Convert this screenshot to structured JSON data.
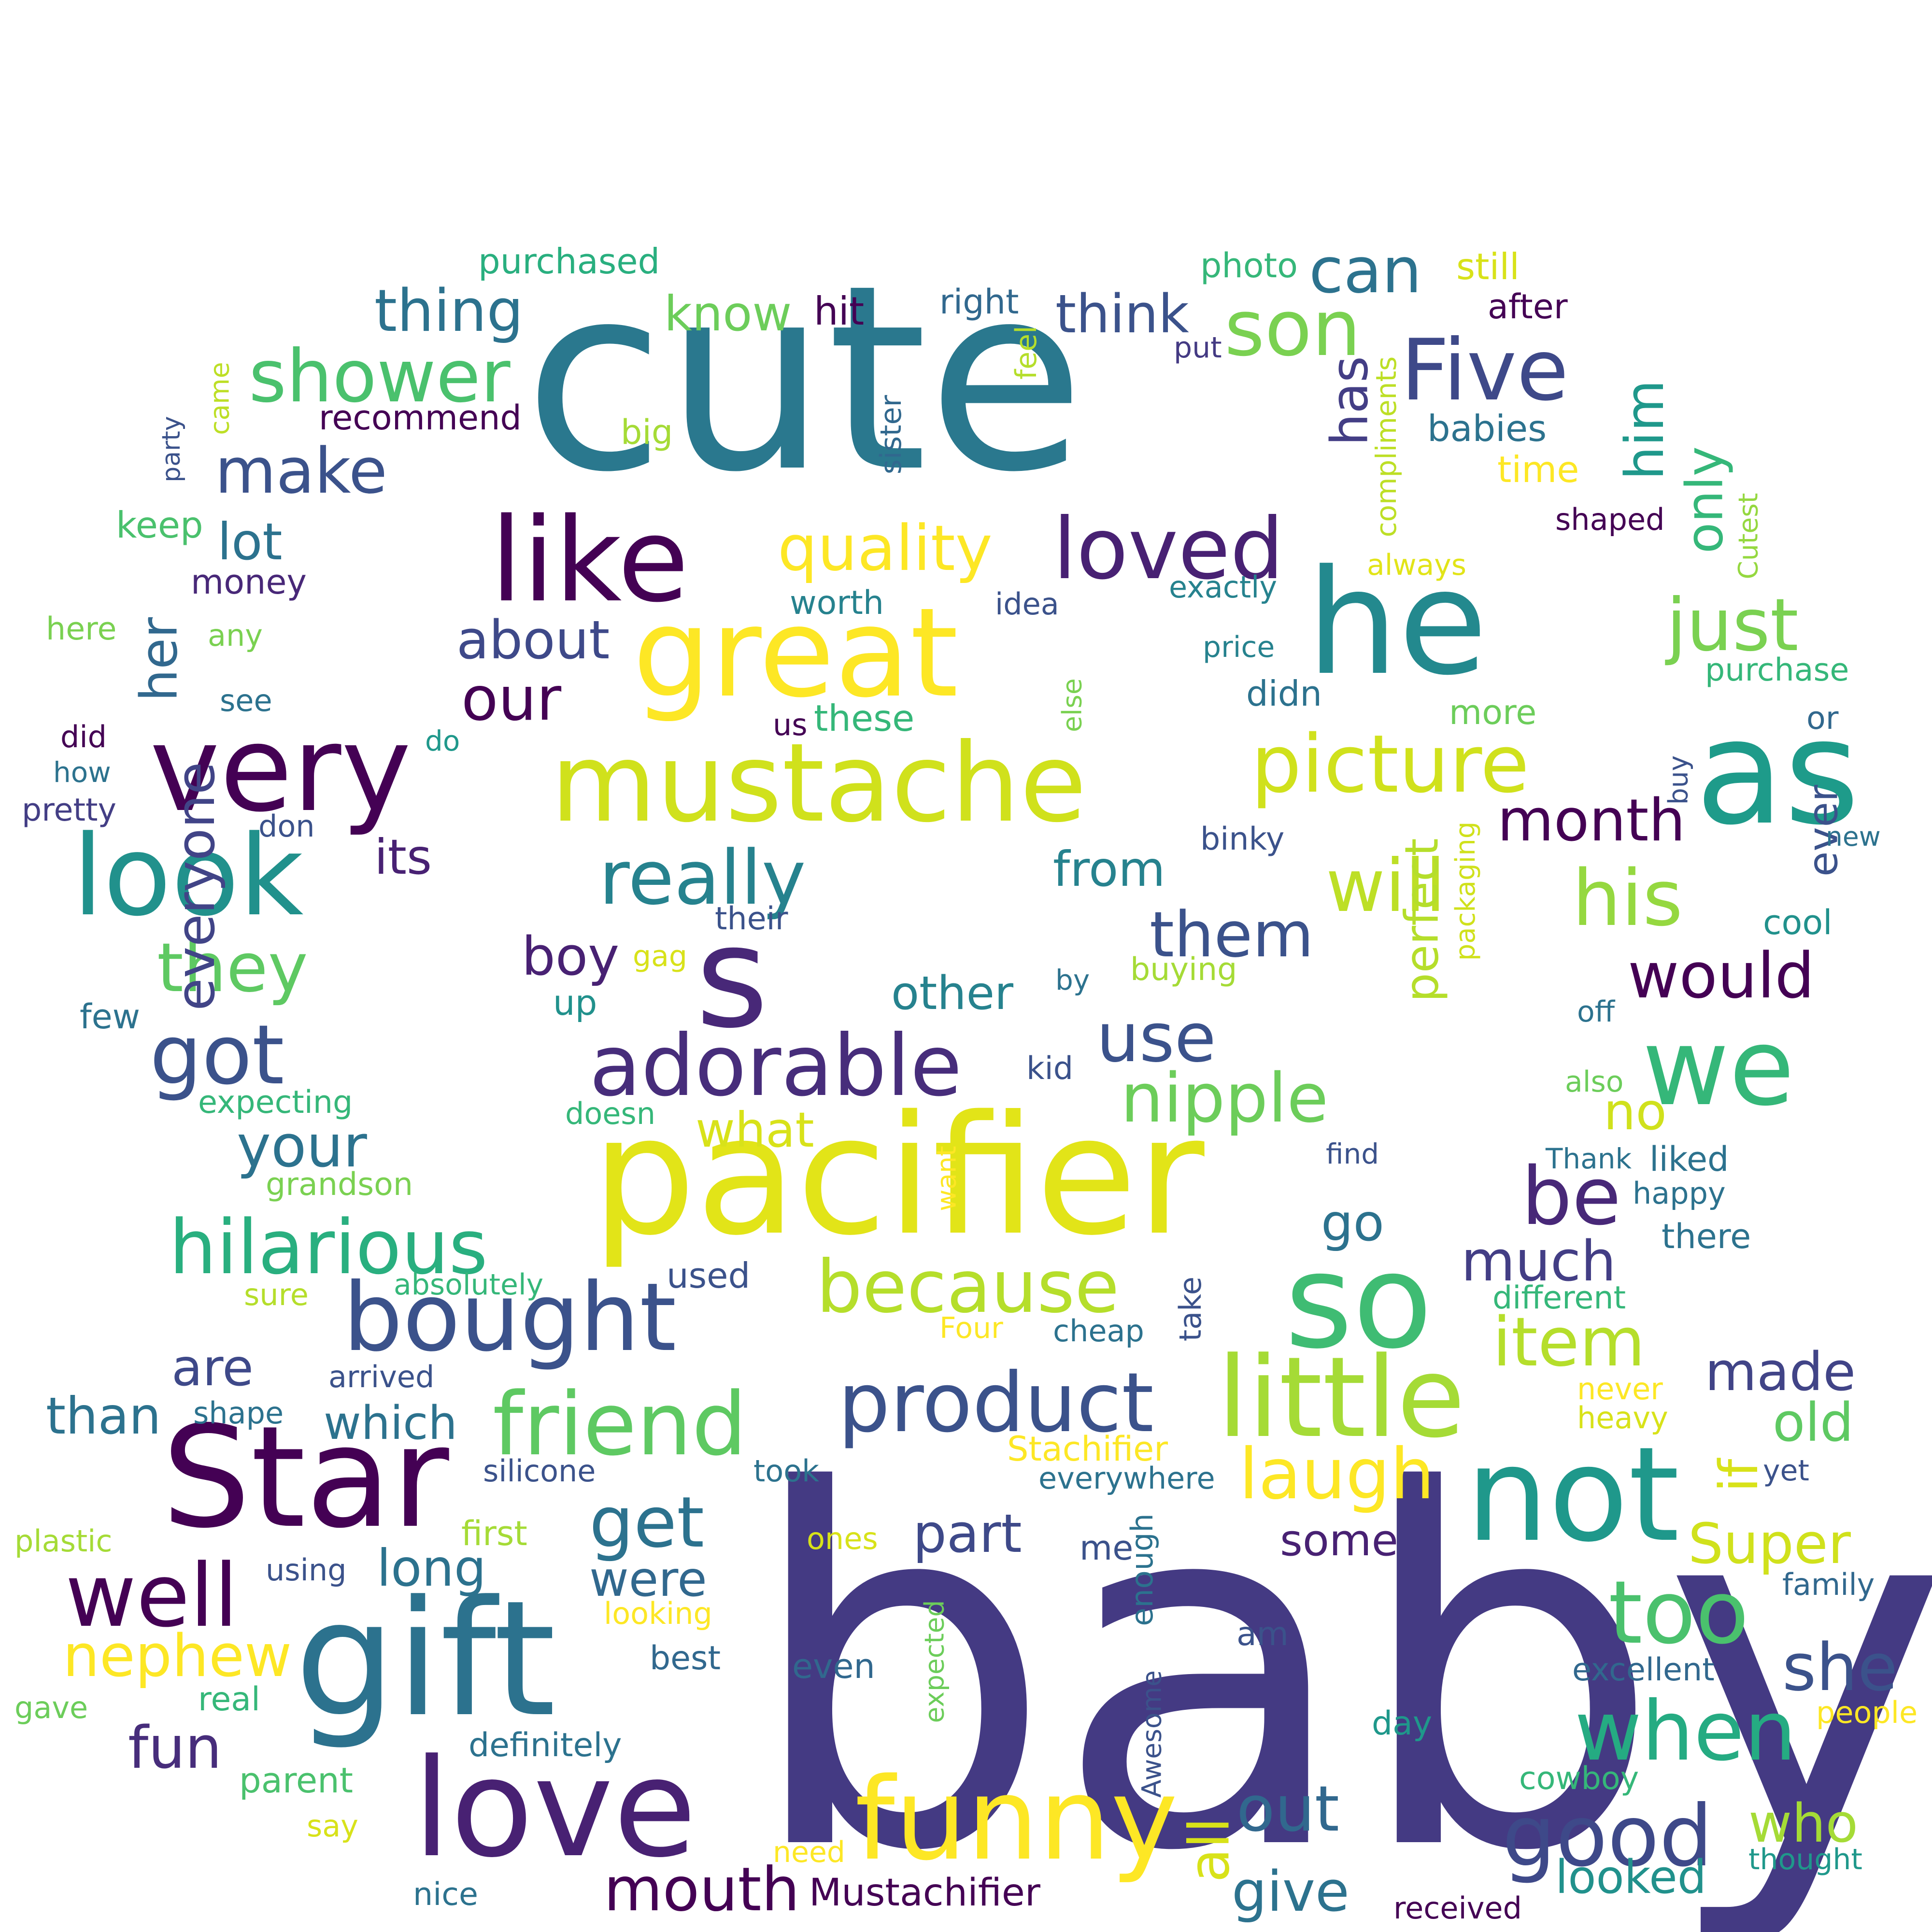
{
  "words": [
    {
      "text": "baby",
      "color": "#443a83"
    },
    {
      "text": "cute",
      "color": "#2a788e"
    },
    {
      "text": "pacifier",
      "color": "#e2e418"
    },
    {
      "text": "gift",
      "color": "#2c728e"
    },
    {
      "text": "Star",
      "color": "#440154"
    },
    {
      "text": "love",
      "color": "#482173"
    },
    {
      "text": "great",
      "color": "#fde725"
    },
    {
      "text": "mustache",
      "color": "#d0e11c"
    },
    {
      "text": "like",
      "color": "#440154"
    },
    {
      "text": "not",
      "color": "#1f988b"
    },
    {
      "text": "he",
      "color": "#23898e"
    },
    {
      "text": "so",
      "color": "#3fbc73"
    },
    {
      "text": "very",
      "color": "#440154"
    },
    {
      "text": "look",
      "color": "#21918c"
    },
    {
      "text": "little",
      "color": "#a5db36"
    },
    {
      "text": "funny",
      "color": "#fde725"
    },
    {
      "text": "s",
      "color": "#482878"
    },
    {
      "text": "bought",
      "color": "#3b528b"
    },
    {
      "text": "as",
      "color": "#1e9b8a"
    },
    {
      "text": "adorable",
      "color": "#472d7b"
    },
    {
      "text": "friend",
      "color": "#5ec962"
    },
    {
      "text": "product",
      "color": "#3b528b"
    },
    {
      "text": "we",
      "color": "#35b779"
    },
    {
      "text": "well",
      "color": "#440154"
    },
    {
      "text": "loved",
      "color": "#482173"
    },
    {
      "text": "Five",
      "color": "#3e4989"
    },
    {
      "text": "son",
      "color": "#7ad151"
    },
    {
      "text": "picture",
      "color": "#d0e11c"
    },
    {
      "text": "hilarious",
      "color": "#29af7f"
    },
    {
      "text": "got",
      "color": "#3b528b"
    },
    {
      "text": "good",
      "color": "#3e4989"
    },
    {
      "text": "too",
      "color": "#4ac16d"
    },
    {
      "text": "when",
      "color": "#25ab82"
    },
    {
      "text": "because",
      "color": "#b5de2b"
    },
    {
      "text": "laugh",
      "color": "#fde725"
    },
    {
      "text": "really",
      "color": "#26828e"
    },
    {
      "text": "shower",
      "color": "#4ac16d"
    },
    {
      "text": "his",
      "color": "#95d840"
    },
    {
      "text": "just",
      "color": "#7ad151"
    },
    {
      "text": "quality",
      "color": "#fde725"
    },
    {
      "text": "nipple",
      "color": "#6ccd5a"
    },
    {
      "text": "mouth",
      "color": "#440154"
    },
    {
      "text": "item",
      "color": "#b5de2b"
    },
    {
      "text": "out",
      "color": "#31688e"
    },
    {
      "text": "give",
      "color": "#2c728e"
    },
    {
      "text": "nephew",
      "color": "#fde725"
    },
    {
      "text": "will",
      "color": "#bddf26"
    },
    {
      "text": "get",
      "color": "#2c728e"
    },
    {
      "text": "be",
      "color": "#482878"
    },
    {
      "text": "make",
      "color": "#3b528b"
    },
    {
      "text": "they",
      "color": "#5ec962"
    },
    {
      "text": "use",
      "color": "#3b528b"
    },
    {
      "text": "them",
      "color": "#3b528b"
    },
    {
      "text": "thing",
      "color": "#2c728e"
    },
    {
      "text": "month",
      "color": "#440154"
    },
    {
      "text": "would",
      "color": "#440154"
    },
    {
      "text": "can",
      "color": "#2c728e"
    },
    {
      "text": "fun",
      "color": "#472d7b"
    },
    {
      "text": "she",
      "color": "#3b528b"
    },
    {
      "text": "your",
      "color": "#2c728e"
    },
    {
      "text": "Super",
      "color": "#d0e11c"
    },
    {
      "text": "looked",
      "color": "#21918c"
    },
    {
      "text": "our",
      "color": "#440154"
    },
    {
      "text": "made",
      "color": "#414487"
    },
    {
      "text": "who",
      "color": "#a5db36"
    },
    {
      "text": "much",
      "color": "#433e85"
    },
    {
      "text": "think",
      "color": "#3b528b"
    },
    {
      "text": "boy",
      "color": "#482173"
    },
    {
      "text": "about",
      "color": "#3e4989"
    },
    {
      "text": "long",
      "color": "#2c728e"
    },
    {
      "text": "part",
      "color": "#3e4989"
    },
    {
      "text": "were",
      "color": "#31688e"
    },
    {
      "text": "everyone",
      "color": "#414487"
    },
    {
      "text": "her",
      "color": "#31688e"
    },
    {
      "text": "perfect",
      "color": "#b5de2b"
    },
    {
      "text": "old",
      "color": "#5ec962"
    },
    {
      "text": "know",
      "color": "#6ccd5a"
    },
    {
      "text": "other",
      "color": "#26828e"
    },
    {
      "text": "which",
      "color": "#2c728e"
    },
    {
      "text": "what",
      "color": "#d8e219"
    },
    {
      "text": "some",
      "color": "#482173"
    },
    {
      "text": "has",
      "color": "#433e85"
    },
    {
      "text": "him",
      "color": "#1f988b"
    },
    {
      "text": "only",
      "color": "#35b779"
    },
    {
      "text": "from",
      "color": "#26828e"
    },
    {
      "text": "are",
      "color": "#3e4989"
    },
    {
      "text": "than",
      "color": "#2c728e"
    },
    {
      "text": "lot",
      "color": "#2c728e"
    },
    {
      "text": "its",
      "color": "#482173"
    },
    {
      "text": "go",
      "color": "#2c728e"
    },
    {
      "text": "no",
      "color": "#d0e11c"
    },
    {
      "text": "all",
      "color": "#d8e219"
    },
    {
      "text": "if",
      "color": "#d8e219"
    },
    {
      "text": "ever",
      "color": "#3b528b"
    },
    {
      "text": "Mustachifier",
      "color": "#440154"
    },
    {
      "text": "purchased",
      "color": "#29af7f"
    },
    {
      "text": "photo",
      "color": "#35b779"
    },
    {
      "text": "still",
      "color": "#d8e219"
    },
    {
      "text": "after",
      "color": "#440154"
    },
    {
      "text": "hit",
      "color": "#440154"
    },
    {
      "text": "right",
      "color": "#31688e"
    },
    {
      "text": "put",
      "color": "#443a83"
    },
    {
      "text": "feel",
      "color": "#b5de2b"
    },
    {
      "text": "recommend",
      "color": "#440154"
    },
    {
      "text": "big",
      "color": "#a5db36"
    },
    {
      "text": "sister",
      "color": "#31688e"
    },
    {
      "text": "compliments",
      "color": "#bddf26"
    },
    {
      "text": "babies",
      "color": "#2c728e"
    },
    {
      "text": "time",
      "color": "#fde725"
    },
    {
      "text": "shaped",
      "color": "#440154"
    },
    {
      "text": "came",
      "color": "#bddf26"
    },
    {
      "text": "party",
      "color": "#3b528b"
    },
    {
      "text": "keep",
      "color": "#4ac16d"
    },
    {
      "text": "money",
      "color": "#482878"
    },
    {
      "text": "worth",
      "color": "#26828e"
    },
    {
      "text": "idea",
      "color": "#3b528b"
    },
    {
      "text": "exactly",
      "color": "#26828e"
    },
    {
      "text": "always",
      "color": "#e2e418"
    },
    {
      "text": "Cutest",
      "color": "#95d840"
    },
    {
      "text": "here",
      "color": "#7ad151"
    },
    {
      "text": "any",
      "color": "#7ad151"
    },
    {
      "text": "price",
      "color": "#26828e"
    },
    {
      "text": "purchase",
      "color": "#35b779"
    },
    {
      "text": "see",
      "color": "#2c728e"
    },
    {
      "text": "else",
      "color": "#7ad151"
    },
    {
      "text": "didn",
      "color": "#2c728e"
    },
    {
      "text": "more",
      "color": "#6ccd5a"
    },
    {
      "text": "did",
      "color": "#440154"
    },
    {
      "text": "us",
      "color": "#440154"
    },
    {
      "text": "these",
      "color": "#35b779"
    },
    {
      "text": "or",
      "color": "#31688e"
    },
    {
      "text": "do",
      "color": "#1f988b"
    },
    {
      "text": "how",
      "color": "#2c728e"
    },
    {
      "text": "buy",
      "color": "#3b528b"
    },
    {
      "text": "pretty",
      "color": "#433e85"
    },
    {
      "text": "don",
      "color": "#3b528b"
    },
    {
      "text": "binky",
      "color": "#3b528b"
    },
    {
      "text": "packaging",
      "color": "#d0e11c"
    },
    {
      "text": "new",
      "color": "#2c728e"
    },
    {
      "text": "their",
      "color": "#3b528b"
    },
    {
      "text": "gag",
      "color": "#d8e219"
    },
    {
      "text": "cool",
      "color": "#21918c"
    },
    {
      "text": "buying",
      "color": "#a5db36"
    },
    {
      "text": "by",
      "color": "#2c728e"
    },
    {
      "text": "few",
      "color": "#2c728e"
    },
    {
      "text": "up",
      "color": "#21918c"
    },
    {
      "text": "off",
      "color": "#2c728e"
    },
    {
      "text": "kid",
      "color": "#3b528b"
    },
    {
      "text": "expecting",
      "color": "#35b779"
    },
    {
      "text": "also",
      "color": "#6ccd5a"
    },
    {
      "text": "doesn",
      "color": "#35b779"
    },
    {
      "text": "find",
      "color": "#3b528b"
    },
    {
      "text": "want",
      "color": "#fde725"
    },
    {
      "text": "Thank",
      "color": "#2c728e"
    },
    {
      "text": "liked",
      "color": "#2c728e"
    },
    {
      "text": "grandson",
      "color": "#7ad151"
    },
    {
      "text": "happy",
      "color": "#2c728e"
    },
    {
      "text": "there",
      "color": "#2c728e"
    },
    {
      "text": "absolutely",
      "color": "#35b779"
    },
    {
      "text": "used",
      "color": "#3b528b"
    },
    {
      "text": "sure",
      "color": "#b5de2b"
    },
    {
      "text": "different",
      "color": "#35b779"
    },
    {
      "text": "take",
      "color": "#3b528b"
    },
    {
      "text": "Four",
      "color": "#fde725"
    },
    {
      "text": "cheap",
      "color": "#2c728e"
    },
    {
      "text": "arrived",
      "color": "#3b528b"
    },
    {
      "text": "never",
      "color": "#fde725"
    },
    {
      "text": "shape",
      "color": "#2c728e"
    },
    {
      "text": "heavy",
      "color": "#d8e219"
    },
    {
      "text": "Stachifier",
      "color": "#fde725"
    },
    {
      "text": "silicone",
      "color": "#3b528b"
    },
    {
      "text": "took",
      "color": "#2c728e"
    },
    {
      "text": "everywhere",
      "color": "#2c728e"
    },
    {
      "text": "yet",
      "color": "#3b528b"
    },
    {
      "text": "plastic",
      "color": "#a5db36"
    },
    {
      "text": "first",
      "color": "#a5db36"
    },
    {
      "text": "ones",
      "color": "#d8e219"
    },
    {
      "text": "using",
      "color": "#3b528b"
    },
    {
      "text": "me",
      "color": "#3b528b"
    },
    {
      "text": "enough",
      "color": "#2c728e"
    },
    {
      "text": "family",
      "color": "#31688e"
    },
    {
      "text": "looking",
      "color": "#fde725"
    },
    {
      "text": "expected",
      "color": "#6ccd5a"
    },
    {
      "text": "am",
      "color": "#3b528b"
    },
    {
      "text": "best",
      "color": "#31688e"
    },
    {
      "text": "even",
      "color": "#31688e"
    },
    {
      "text": "excellent",
      "color": "#31688e"
    },
    {
      "text": "gave",
      "color": "#6ccd5a"
    },
    {
      "text": "real",
      "color": "#35b779"
    },
    {
      "text": "day",
      "color": "#1f988b"
    },
    {
      "text": "people",
      "color": "#fde725"
    },
    {
      "text": "definitely",
      "color": "#2c728e"
    },
    {
      "text": "Awesome",
      "color": "#3b528b"
    },
    {
      "text": "parent",
      "color": "#4ac16d"
    },
    {
      "text": "cowboy",
      "color": "#35b779"
    },
    {
      "text": "say",
      "color": "#d8e219"
    },
    {
      "text": "need",
      "color": "#fde725"
    },
    {
      "text": "thought",
      "color": "#1f988b"
    },
    {
      "text": "nice",
      "color": "#2c728e"
    },
    {
      "text": "received",
      "color": "#440154"
    }
  ]
}
